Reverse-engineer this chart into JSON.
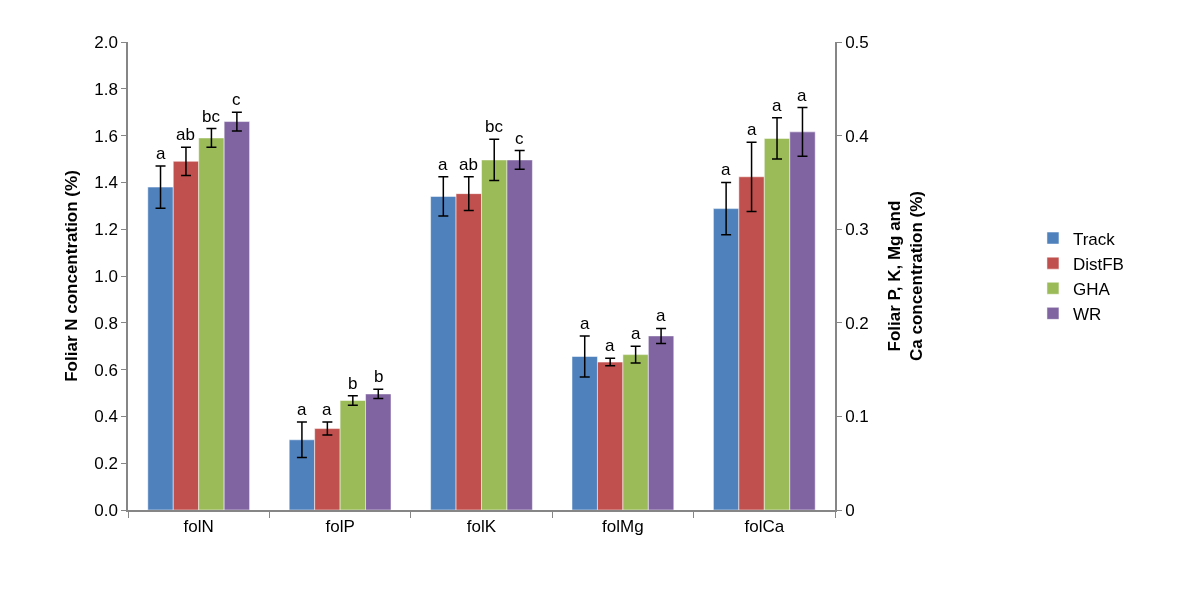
{
  "chart_data": {
    "type": "bar",
    "ylabel": "Foliar N concentration (%)",
    "y2label": "Foliar P, K, Mg and Ca concentration (%)",
    "categories": [
      "folN",
      "folP",
      "folK",
      "folMg",
      "folCa"
    ],
    "ylim": [
      0,
      2.0
    ],
    "yticks": [
      {
        "value": 0,
        "label": "0.0"
      },
      0.2,
      0.4,
      0.6,
      0.8,
      {
        "value": 1,
        "label": "1.0"
      },
      1.2,
      1.4,
      1.6,
      1.8,
      {
        "value": 2,
        "label": "2.0"
      }
    ],
    "y2lim": [
      0,
      0.5
    ],
    "y2ticks": [
      0,
      0.1,
      0.2,
      0.3,
      0.4,
      0.5
    ],
    "grid": false,
    "legend": "right",
    "series": [
      {
        "name": "Track",
        "color": "#4f81bd",
        "values": [
          1.38,
          null,
          null,
          null,
          null
        ],
        "errors": [
          0.09,
          null,
          null,
          null,
          null
        ],
        "value_labels": [
          "a",
          null,
          null,
          null,
          null
        ]
      },
      {
        "name": "DistFB",
        "color": "#c0504d",
        "values": [
          1.49,
          null,
          null,
          null,
          null
        ],
        "errors": [
          0.06,
          null,
          null,
          null,
          null
        ],
        "value_labels": [
          "ab",
          null,
          null,
          null,
          null
        ]
      },
      {
        "name": "GHA",
        "color": "#9bbb59",
        "values": [
          1.59,
          null,
          null,
          null,
          null
        ],
        "errors": [
          0.04,
          null,
          null,
          null,
          null
        ],
        "value_labels": [
          "bc",
          null,
          null,
          null,
          null
        ]
      },
      {
        "name": "WR",
        "color": "#8064a2",
        "values": [
          1.66,
          null,
          null,
          null,
          null
        ],
        "errors": [
          0.04,
          null,
          null,
          null,
          null
        ],
        "value_labels": [
          "c",
          null,
          null,
          null,
          null
        ]
      },
      {
        "color": "#4f81bd",
        "axis": "y2",
        "values": [
          null,
          0.075,
          0.335,
          0.164,
          0.322
        ],
        "errors": [
          null,
          0.019,
          0.021,
          0.022,
          0.028
        ],
        "value_labels": [
          null,
          "a",
          "a",
          "a",
          "a"
        ]
      },
      {
        "color": "#c0504d",
        "axis": "y2",
        "values": [
          null,
          0.087,
          0.338,
          0.158,
          0.356
        ],
        "errors": [
          null,
          0.007,
          0.018,
          0.004,
          0.037
        ],
        "value_labels": [
          null,
          "a",
          "ab",
          "a",
          "a"
        ]
      },
      {
        "color": "#9bbb59",
        "axis": "y2",
        "values": [
          null,
          0.117,
          0.374,
          0.166,
          0.397
        ],
        "errors": [
          null,
          0.005,
          0.022,
          0.009,
          0.022
        ],
        "value_labels": [
          null,
          "b",
          "bc",
          "a",
          "a"
        ]
      },
      {
        "color": "#8064a2",
        "axis": "y2",
        "values": [
          null,
          0.124,
          0.374,
          0.186,
          0.404
        ],
        "errors": [
          null,
          0.005,
          0.01,
          0.008,
          0.026
        ],
        "value_labels": [
          null,
          "b",
          "c",
          "a",
          "a"
        ]
      }
    ]
  }
}
